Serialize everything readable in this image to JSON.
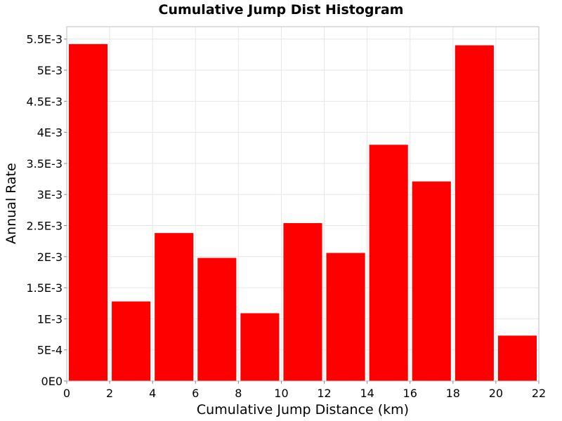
{
  "chart_data": {
    "type": "bar",
    "title": "Cumulative Jump Dist Histogram",
    "xlabel": "Cumulative Jump Distance (km)",
    "ylabel": "Annual Rate",
    "bin_width": 2,
    "bin_starts": [
      0,
      2,
      4,
      6,
      8,
      10,
      12,
      14,
      16,
      18,
      20
    ],
    "values": [
      0.00542,
      0.00128,
      0.00238,
      0.00198,
      0.00109,
      0.00254,
      0.00206,
      0.0038,
      0.00321,
      0.0054,
      0.00073
    ],
    "xlim": [
      0,
      22
    ],
    "ylim": [
      0,
      0.0057
    ],
    "x_ticks": [
      0,
      2,
      4,
      6,
      8,
      10,
      12,
      14,
      16,
      18,
      20,
      22
    ],
    "y_ticks": [
      {
        "value": 0,
        "label": "0E0"
      },
      {
        "value": 0.0005,
        "label": "5E-4"
      },
      {
        "value": 0.001,
        "label": "1E-3"
      },
      {
        "value": 0.0015,
        "label": "1.5E-3"
      },
      {
        "value": 0.002,
        "label": "2E-3"
      },
      {
        "value": 0.0025,
        "label": "2.5E-3"
      },
      {
        "value": 0.003,
        "label": "3E-3"
      },
      {
        "value": 0.0035,
        "label": "3.5E-3"
      },
      {
        "value": 0.004,
        "label": "4E-3"
      },
      {
        "value": 0.0045,
        "label": "4.5E-3"
      },
      {
        "value": 0.005,
        "label": "5E-3"
      },
      {
        "value": 0.0055,
        "label": "5.5E-3"
      }
    ],
    "grid": true,
    "bar_color": "#ff0000"
  }
}
